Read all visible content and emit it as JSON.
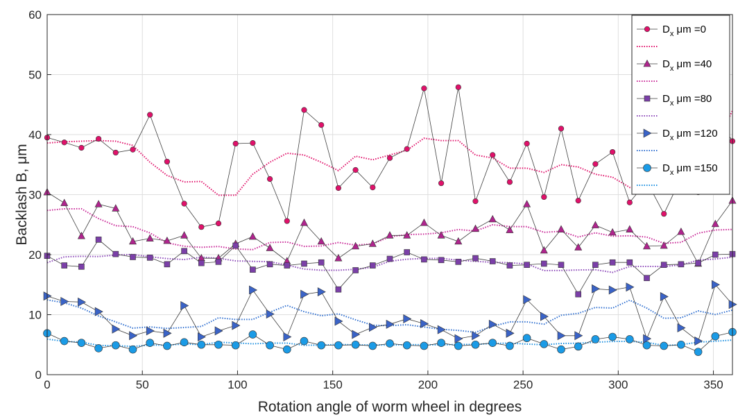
{
  "chart_data": {
    "type": "line",
    "xlabel": "Rotation angle of worm wheel in degrees",
    "ylabel": "Backlash B, μm",
    "xlim": [
      0,
      360
    ],
    "ylim": [
      0,
      60
    ],
    "xticks": [
      0,
      50,
      100,
      150,
      200,
      250,
      300,
      350
    ],
    "yticks": [
      0,
      10,
      20,
      30,
      40,
      50,
      60
    ],
    "grid": true,
    "legend_position": "top-right",
    "x": [
      0,
      9,
      18,
      27,
      36,
      45,
      54,
      63,
      72,
      81,
      90,
      99,
      108,
      117,
      126,
      135,
      144,
      153,
      162,
      171,
      180,
      189,
      198,
      207,
      216,
      225,
      234,
      243,
      252,
      261,
      270,
      279,
      288,
      297,
      306,
      315,
      324,
      333,
      342,
      351,
      360
    ],
    "series": [
      {
        "name": "Dx μm =0",
        "legend_prefix": "D",
        "legend_sub": "x",
        "legend_suffix": " μm =0",
        "marker": "circle",
        "color": "#e0116a",
        "trend_color": "#e0116a",
        "values": [
          39.5,
          38.7,
          37.8,
          39.3,
          37.0,
          37.5,
          43.3,
          35.5,
          28.5,
          24.6,
          25.2,
          38.5,
          38.6,
          32.6,
          25.6,
          44.1,
          41.6,
          31.1,
          34.1,
          31.2,
          36.1,
          37.6,
          47.7,
          31.9,
          47.9,
          28.9,
          36.6,
          32.1,
          38.5,
          29.6,
          41.0,
          29.0,
          35.1,
          37.1,
          28.7,
          32.2,
          26.8,
          32.8,
          30.4,
          43.5,
          38.9
        ],
        "trend": [
          38.6,
          38.8,
          38.9,
          39.0,
          38.9,
          38.2,
          35.4,
          33.2,
          32.1,
          32.2,
          29.9,
          29.9,
          33.4,
          35.4,
          36.9,
          36.6,
          35.4,
          34.0,
          36.4,
          35.8,
          36.6,
          37.4,
          39.4,
          39.0,
          39.0,
          36.6,
          36.1,
          34.4,
          34.4,
          33.7,
          35.0,
          34.6,
          33.4,
          32.9,
          31.2,
          30.9,
          31.7,
          31.2,
          33.1,
          38.0,
          44.0
        ]
      },
      {
        "name": "Dx μm =40",
        "legend_prefix": "D",
        "legend_sub": "x",
        "legend_suffix": " μm =40",
        "marker": "triangle",
        "color": "#b0248e",
        "trend_color": "#c82596",
        "values": [
          30.4,
          28.6,
          23.1,
          28.4,
          27.7,
          22.2,
          22.7,
          22.3,
          23.2,
          19.4,
          19.4,
          21.8,
          23.0,
          21.1,
          18.9,
          25.3,
          22.2,
          19.4,
          21.4,
          21.8,
          23.2,
          23.2,
          25.3,
          23.2,
          22.2,
          24.3,
          25.9,
          24.1,
          28.4,
          20.7,
          24.2,
          21.2,
          24.9,
          23.7,
          24.2,
          21.4,
          21.5,
          23.8,
          18.5,
          25.1,
          29.0
        ]
      },
      {
        "name": "Dx μm =80",
        "legend_prefix": "D",
        "legend_sub": "x",
        "legend_suffix": " μm =80",
        "marker": "square",
        "color": "#7b3fa8",
        "trend_color": "#8a45b8",
        "values": [
          19.8,
          18.2,
          18.0,
          22.5,
          20.1,
          19.6,
          19.5,
          18.4,
          20.6,
          18.6,
          18.8,
          21.5,
          17.5,
          18.4,
          18.2,
          18.5,
          18.7,
          14.2,
          17.4,
          18.2,
          19.3,
          20.4,
          19.2,
          19.1,
          18.8,
          19.4,
          18.9,
          18.2,
          18.3,
          18.5,
          18.3,
          13.4,
          18.3,
          18.7,
          18.7,
          16.1,
          18.3,
          18.4,
          18.6,
          20.0,
          20.1
        ]
      },
      {
        "name": "Dx μm =120",
        "legend_prefix": "D",
        "legend_sub": "x",
        "legend_suffix": " μm =120",
        "marker": "triangle-right",
        "color": "#3a63c7",
        "trend_color": "#2f6fd0",
        "values": [
          13.1,
          12.2,
          12.1,
          10.5,
          7.6,
          6.5,
          7.3,
          6.9,
          11.5,
          6.3,
          7.3,
          8.2,
          14.1,
          10.1,
          6.3,
          13.4,
          13.8,
          8.9,
          6.7,
          7.9,
          8.4,
          9.3,
          8.5,
          7.5,
          6.0,
          6.5,
          8.4,
          6.9,
          12.5,
          9.7,
          6.5,
          6.5,
          14.3,
          14.1,
          14.6,
          6.0,
          13.0,
          7.8,
          5.6,
          15.0,
          11.7
        ]
      },
      {
        "name": "Dx μm =150",
        "legend_prefix": "D",
        "legend_sub": "x",
        "legend_suffix": " μm =150",
        "marker": "circle-large",
        "color": "#1b9be6",
        "trend_color": "#1b8fe0",
        "values": [
          6.9,
          5.6,
          5.3,
          4.4,
          4.9,
          4.2,
          5.3,
          4.8,
          5.4,
          5.0,
          5.0,
          4.9,
          6.7,
          4.9,
          4.2,
          5.6,
          4.9,
          4.9,
          5.0,
          4.8,
          5.2,
          4.9,
          4.8,
          5.3,
          4.8,
          5.0,
          5.3,
          4.8,
          6.1,
          5.1,
          4.2,
          4.7,
          5.9,
          6.3,
          5.9,
          4.9,
          4.8,
          5.0,
          3.8,
          6.4,
          7.1
        ]
      }
    ]
  }
}
